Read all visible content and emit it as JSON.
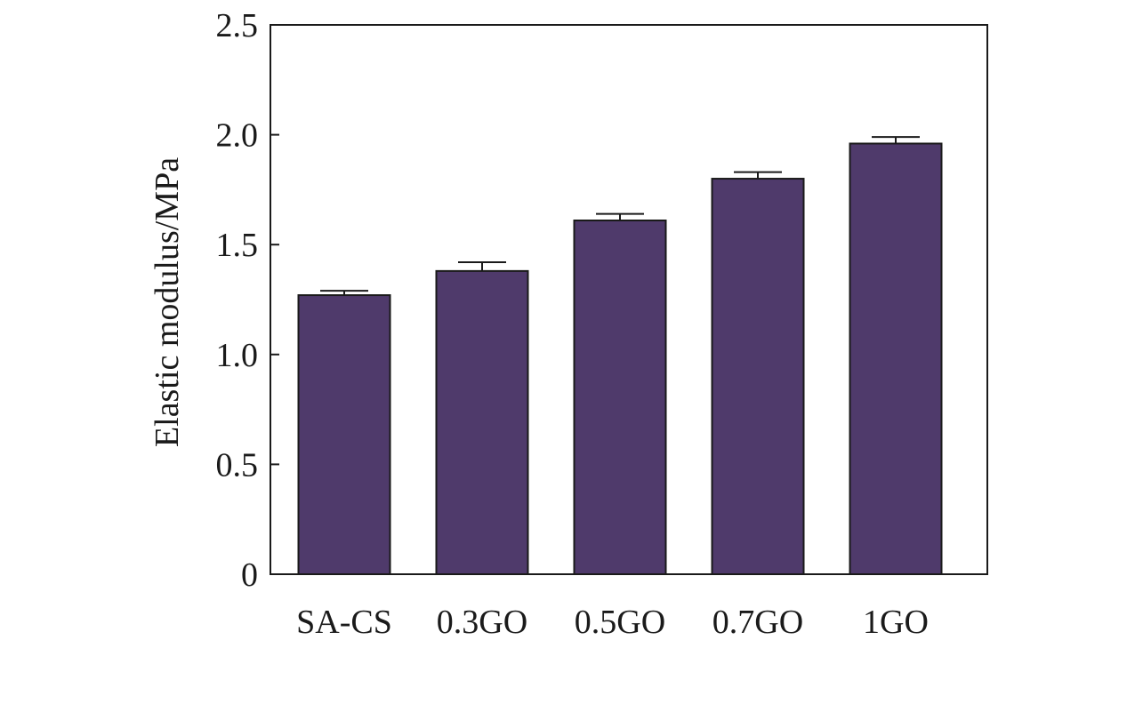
{
  "chart_data": {
    "type": "bar",
    "title": "",
    "xlabel": "",
    "ylabel": "Elastic modulus/MPa",
    "categories": [
      "SA-CS",
      "0.3GO",
      "0.5GO",
      "0.7GO",
      "1GO"
    ],
    "series": [
      {
        "values": [
          1.27,
          1.38,
          1.61,
          1.8,
          1.96
        ],
        "errors": [
          0.02,
          0.04,
          0.03,
          0.03,
          0.03
        ]
      }
    ],
    "ylim": [
      0,
      2.5
    ],
    "yticks": [
      0,
      0.5,
      1.0,
      1.5,
      2.0,
      2.5
    ],
    "ytick_labels": [
      "0",
      "0.5",
      "1.0",
      "1.5",
      "2.0",
      "2.5"
    ],
    "grid": false,
    "legend": "none",
    "bar_color": "#4f3a6b",
    "axis_color": "#1a1a1a"
  }
}
